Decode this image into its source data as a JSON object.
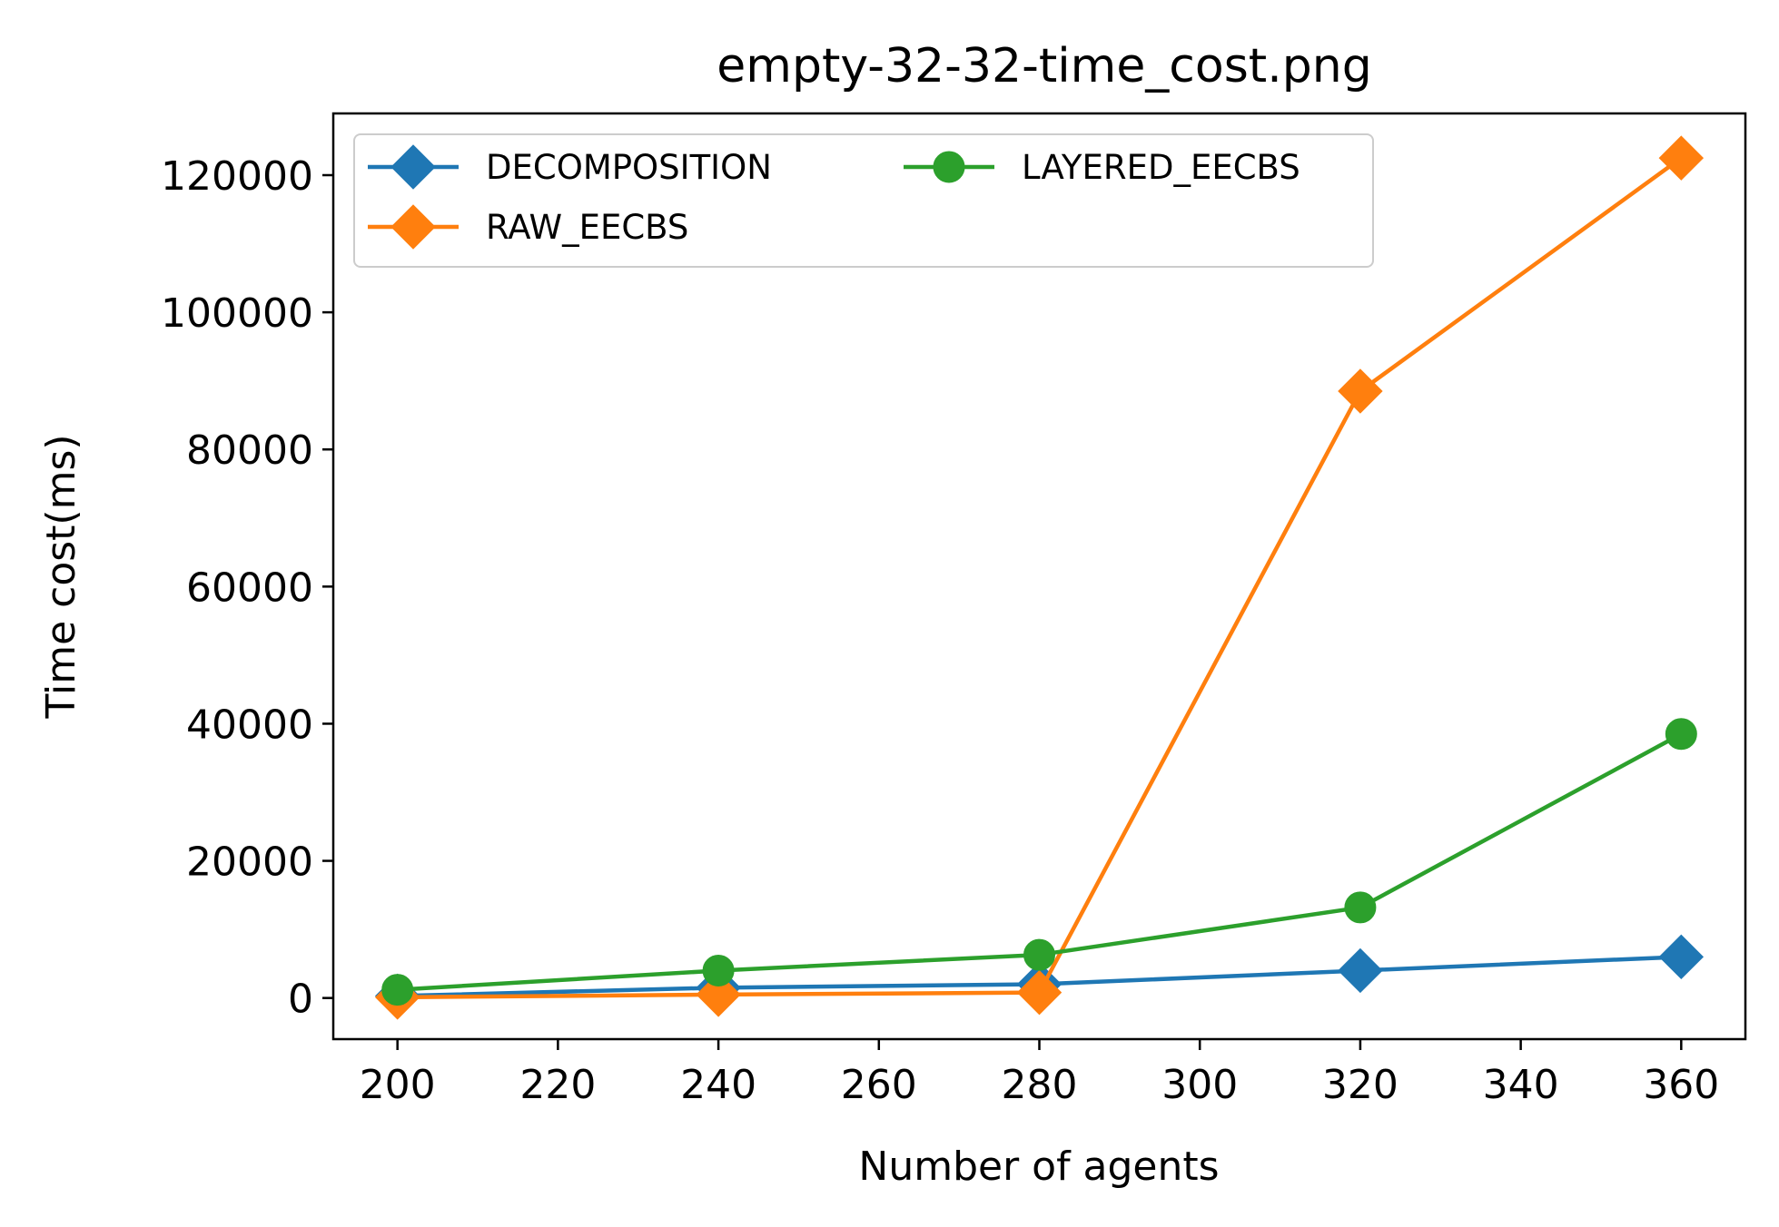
{
  "chart_data": {
    "type": "line",
    "title": "empty-32-32-time_cost.png",
    "xlabel": "Number of agents",
    "ylabel": "Time cost(ms)",
    "x": [
      200,
      240,
      280,
      320,
      360
    ],
    "xlim": [
      192,
      368
    ],
    "ylim": [
      -6000,
      129000
    ],
    "xticks": [
      200,
      220,
      240,
      260,
      280,
      300,
      320,
      340,
      360
    ],
    "yticks": [
      0,
      20000,
      40000,
      60000,
      80000,
      100000,
      120000
    ],
    "grid": false,
    "legend": {
      "placement": "top-left",
      "columns": 2
    },
    "series": [
      {
        "name": "DECOMPOSITION",
        "color": "#1f77b4",
        "marker": "diamond",
        "values": [
          300,
          1500,
          2000,
          4000,
          6000
        ]
      },
      {
        "name": "RAW_EECBS",
        "color": "#ff7f0e",
        "marker": "diamond",
        "values": [
          100,
          500,
          800,
          88500,
          122500
        ]
      },
      {
        "name": "LAYERED_EECBS",
        "color": "#2ca02c",
        "marker": "circle",
        "values": [
          1200,
          4000,
          6300,
          13200,
          38500
        ]
      }
    ]
  }
}
